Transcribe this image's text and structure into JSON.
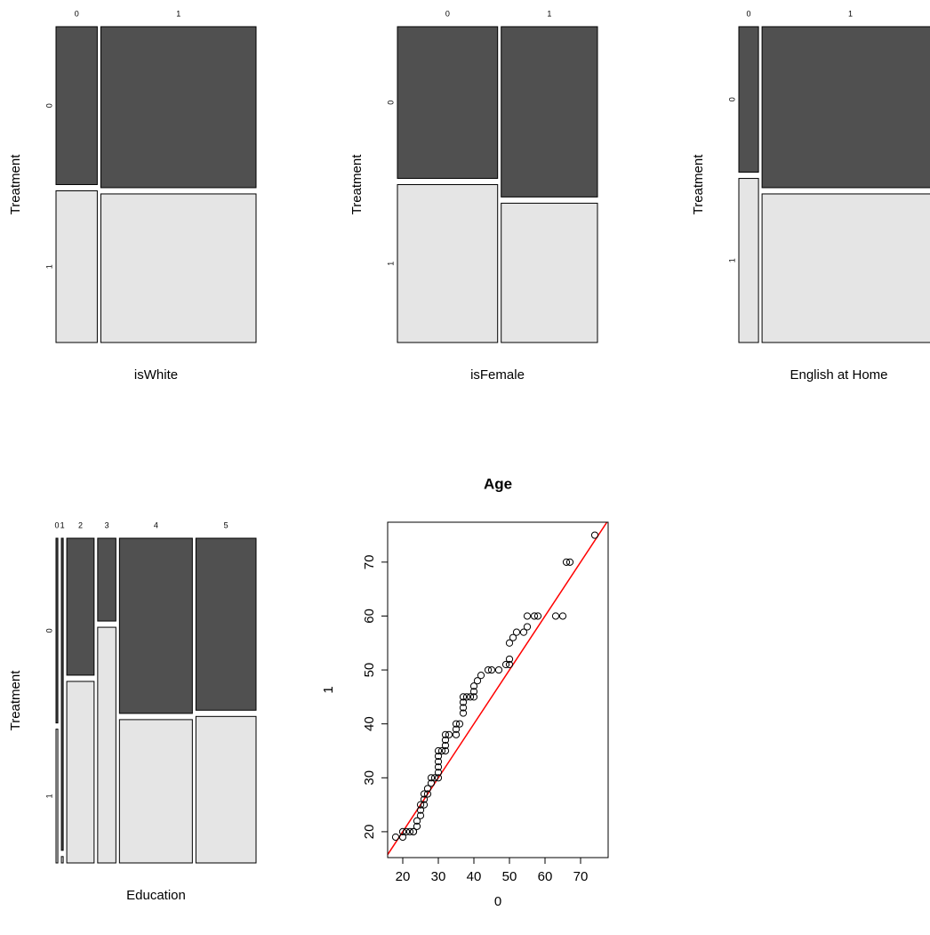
{
  "chart_data": [
    {
      "type": "mosaic",
      "x_label": "isWhite",
      "y_label": "Treatment",
      "categories": [
        "0",
        "1"
      ],
      "widths": [
        0.21,
        0.79
      ],
      "series": [
        {
          "name": "0",
          "color": "#505050",
          "values": [
            0.51,
            0.52
          ]
        },
        {
          "name": "1",
          "color": "#e5e5e5",
          "values": [
            0.49,
            0.48
          ]
        }
      ]
    },
    {
      "type": "mosaic",
      "x_label": "isFemale",
      "y_label": "Treatment",
      "categories": [
        "0",
        "1"
      ],
      "widths": [
        0.51,
        0.49
      ],
      "series": [
        {
          "name": "0",
          "color": "#505050",
          "values": [
            0.49,
            0.55
          ]
        },
        {
          "name": "1",
          "color": "#e5e5e5",
          "values": [
            0.51,
            0.45
          ]
        }
      ]
    },
    {
      "type": "mosaic",
      "x_label": "English at Home",
      "y_label": "Treatment",
      "categories": [
        "0",
        "1"
      ],
      "widths": [
        0.1,
        0.9
      ],
      "series": [
        {
          "name": "0",
          "color": "#505050",
          "values": [
            0.47,
            0.52
          ]
        },
        {
          "name": "1",
          "color": "#e5e5e5",
          "values": [
            0.53,
            0.48
          ]
        }
      ]
    },
    {
      "type": "mosaic",
      "x_label": "Education",
      "y_label": "Treatment",
      "categories": [
        "0",
        "1",
        "2",
        "3",
        "4",
        "5"
      ],
      "widths": [
        0.01,
        0.01,
        0.15,
        0.1,
        0.4,
        0.33
      ],
      "series": [
        {
          "name": "0",
          "color": "#505050",
          "values": [
            0.58,
            0.98,
            0.43,
            0.26,
            0.55,
            0.54
          ]
        },
        {
          "name": "1",
          "color": "#e5e5e5",
          "values": [
            0.42,
            0.02,
            0.57,
            0.74,
            0.45,
            0.46
          ]
        }
      ]
    },
    {
      "type": "scatter",
      "title": "Age",
      "x_label": "0",
      "y_label": "1",
      "x": [
        18,
        20,
        20,
        21,
        22,
        23,
        23,
        24,
        24,
        25,
        25,
        25,
        26,
        26,
        26,
        27,
        27,
        28,
        28,
        29,
        30,
        30,
        30,
        30,
        30,
        30,
        31,
        32,
        32,
        32,
        32,
        33,
        35,
        35,
        35,
        36,
        37,
        37,
        37,
        37,
        38,
        39,
        40,
        40,
        40,
        41,
        42,
        44,
        45,
        47,
        49,
        50,
        50,
        50,
        51,
        52,
        54,
        55,
        55,
        57,
        58,
        63,
        65,
        66,
        67,
        74
      ],
      "values": [
        19,
        19,
        20,
        20,
        20,
        20,
        20,
        21,
        22,
        23,
        24,
        25,
        25,
        26,
        27,
        27,
        28,
        29,
        30,
        30,
        30,
        31,
        32,
        33,
        34,
        35,
        35,
        35,
        36,
        37,
        38,
        38,
        38,
        39,
        40,
        40,
        42,
        43,
        44,
        45,
        45,
        45,
        45,
        46,
        47,
        48,
        49,
        50,
        50,
        50,
        51,
        51,
        52,
        55,
        56,
        57,
        57,
        58,
        60,
        60,
        60,
        60,
        60,
        70,
        70,
        75
      ],
      "point_color": "#000000",
      "reference_line": {
        "slope": 1,
        "intercept": 0,
        "color": "#ff0000"
      },
      "xlim": [
        15.75,
        77.75
      ],
      "ylim": [
        15.2,
        77.4
      ],
      "xticks": [
        20,
        30,
        40,
        50,
        60,
        70
      ],
      "yticks": [
        20,
        30,
        40,
        50,
        60,
        70
      ]
    }
  ]
}
